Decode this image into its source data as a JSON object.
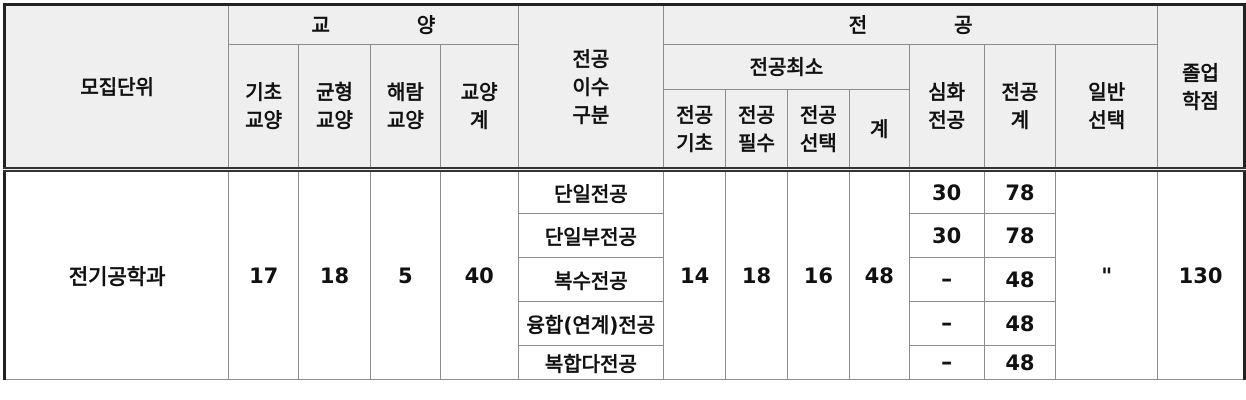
{
  "headers": {
    "unit": "모집단위",
    "liberal_group": "교  양",
    "liberal_cols": [
      {
        "line1": "기초",
        "line2": "교양"
      },
      {
        "line1": "균형",
        "line2": "교양"
      },
      {
        "line1": "해람",
        "line2": "교양"
      },
      {
        "line1": "교양",
        "line2": "계"
      }
    ],
    "major_type": {
      "line1": "전공",
      "line2": "이수",
      "line3": "구분"
    },
    "major_group": "전  공",
    "major_min_group": "전공최소",
    "major_min_cols": [
      {
        "line1": "전공",
        "line2": "기초"
      },
      {
        "line1": "전공",
        "line2": "필수"
      },
      {
        "line1": "전공",
        "line2": "선택"
      },
      {
        "line1": "계",
        "line2": ""
      }
    ],
    "advanced_major": {
      "line1": "심화",
      "line2": "전공"
    },
    "major_total": {
      "line1": "전공",
      "line2": "계"
    },
    "general_elective": {
      "line1": "일반",
      "line2": "선택"
    },
    "graduation_credits": {
      "line1": "졸업",
      "line2": "학점"
    }
  },
  "row": {
    "unit": "전기공학과",
    "basic_liberal": "17",
    "balanced_liberal": "18",
    "haeram_liberal": "5",
    "liberal_total": "40",
    "major_basic": "14",
    "major_required": "18",
    "major_elective": "16",
    "major_min_total": "48",
    "general_elective": "\"",
    "graduation_credits": "130",
    "types": [
      {
        "name": "단일전공",
        "advanced": "30",
        "total": "78"
      },
      {
        "name": "단일부전공",
        "advanced": "30",
        "total": "78"
      },
      {
        "name": "복수전공",
        "advanced": "–",
        "total": "48"
      },
      {
        "name": "융합(연계)전공",
        "advanced": "–",
        "total": "48"
      },
      {
        "name": "복합다전공",
        "advanced": "–",
        "total": "48"
      }
    ]
  }
}
